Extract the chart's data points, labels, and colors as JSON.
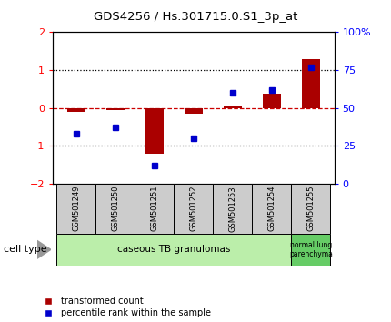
{
  "title": "GDS4256 / Hs.301715.0.S1_3p_at",
  "samples": [
    "GSM501249",
    "GSM501250",
    "GSM501251",
    "GSM501252",
    "GSM501253",
    "GSM501254",
    "GSM501255"
  ],
  "red_values": [
    -0.1,
    -0.05,
    -1.22,
    -0.15,
    0.05,
    0.38,
    1.3
  ],
  "blue_values": [
    33,
    37,
    12,
    30,
    60,
    62,
    77
  ],
  "ylim_left": [
    -2,
    2
  ],
  "ylim_right": [
    0,
    100
  ],
  "red_color": "#aa0000",
  "blue_color": "#0000cc",
  "red_dashed_color": "#cc0000",
  "dotted_color": "#000000",
  "group0_label": "caseous TB granulomas",
  "group0_color": "#bbeeaa",
  "group1_label": "normal lung\nparenchyma",
  "group1_color": "#66cc66",
  "cell_type_label": "cell type",
  "legend_red": "transformed count",
  "legend_blue": "percentile rank within the sample",
  "right_tick_labels": [
    "0",
    "25",
    "50",
    "75",
    "100%"
  ],
  "right_ticks": [
    0,
    25,
    50,
    75,
    100
  ],
  "left_ticks": [
    -2,
    -1,
    0,
    1,
    2
  ],
  "bar_width": 0.45,
  "label_gray": "#cccccc",
  "bg_color": "#ffffff"
}
